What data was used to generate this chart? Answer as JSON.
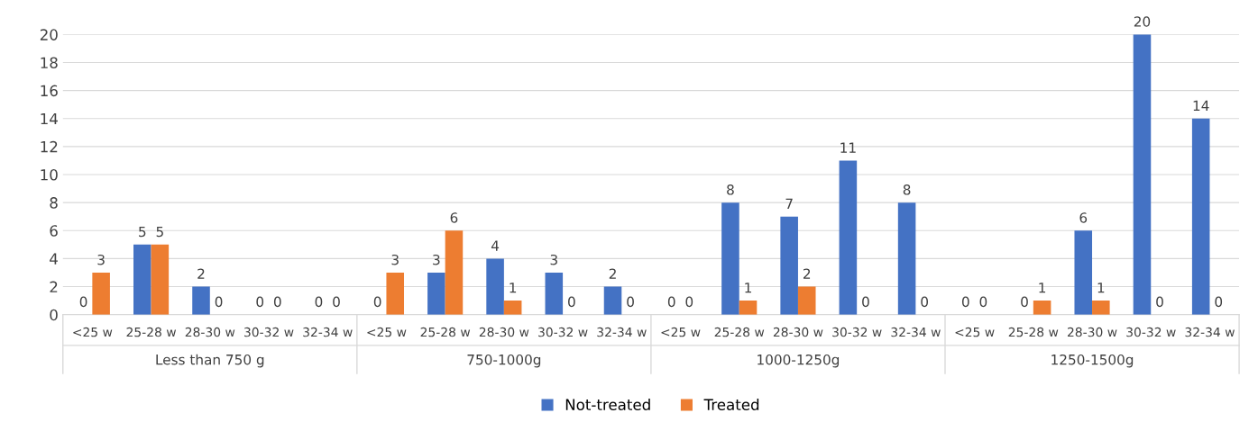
{
  "chart_data": {
    "type": "bar",
    "categories": [
      "<25 w",
      "25-28 w",
      "28-30 w",
      "30-32 w",
      "32-34 w",
      "<25 w",
      "25-28 w",
      "28-30 w",
      "30-32 w",
      "32-34 w",
      "<25 w",
      "25-28 w",
      "28-30 w",
      "30-32 w",
      "32-34 w",
      "<25 w",
      "25-28 w",
      "28-30 w",
      "30-32 w",
      "32-34 w"
    ],
    "series": [
      {
        "name": "Not-treated",
        "color": "#4472c4",
        "values": [
          0,
          5,
          2,
          0,
          0,
          0,
          3,
          4,
          3,
          2,
          0,
          8,
          7,
          11,
          8,
          0,
          0,
          6,
          20,
          14
        ]
      },
      {
        "name": "Treated",
        "color": "#ed7d31",
        "values": [
          3,
          5,
          0,
          0,
          0,
          3,
          6,
          1,
          0,
          0,
          0,
          1,
          2,
          0,
          0,
          0,
          1,
          1,
          0,
          0
        ]
      }
    ],
    "annotations": [
      "Less than 750 g",
      "750-1000g",
      "1000-1250g",
      "1250-1500g"
    ],
    "ylim": [
      0,
      20
    ],
    "yticks": [
      0,
      2,
      4,
      6,
      8,
      10,
      12,
      14,
      16,
      18,
      20
    ],
    "grid": "y",
    "legend": "bottom",
    "data_labels": true
  }
}
